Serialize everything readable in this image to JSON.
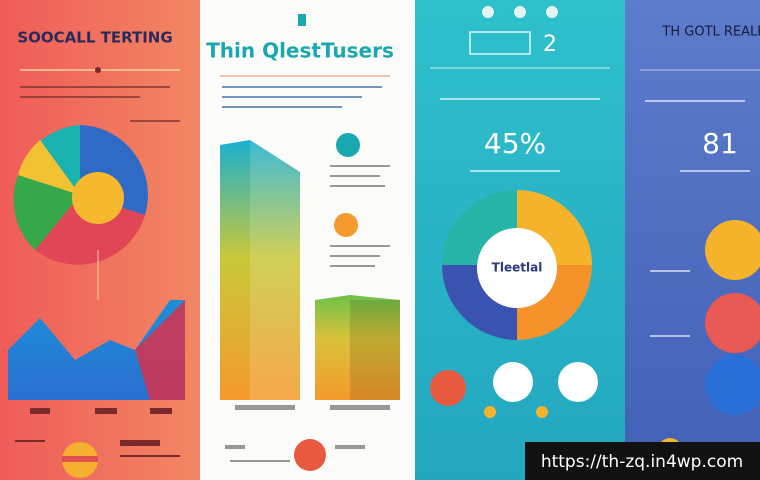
{
  "panels": [
    {
      "title": "SOOCALL TERTING"
    },
    {
      "title": "Thin QlestTusers"
    },
    {
      "title": "2",
      "stat": "45%",
      "center_label": "Tleetlal"
    },
    {
      "title": "TH GOTL REALEIS",
      "stat": "81"
    }
  ],
  "watermark": "https://th-zq.in4wp.com"
}
